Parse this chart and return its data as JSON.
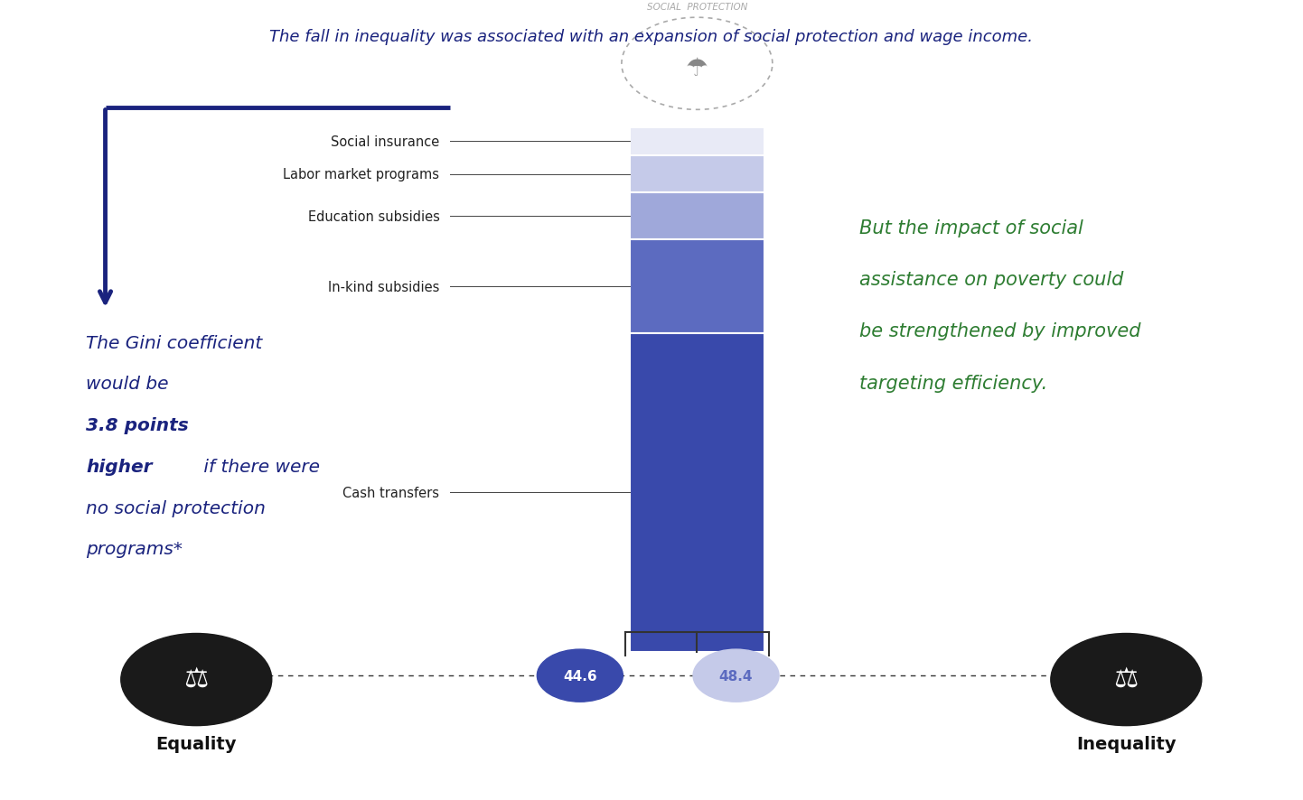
{
  "subtitle": "The fall in inequality was associated with an expansion of social protection and wage income.",
  "subtitle_color": "#1a237e",
  "gini_color": "#1a237e",
  "right_lines": [
    "But the impact of social",
    "assistance on poverty could",
    "be strengthened by improved",
    "targeting efficiency."
  ],
  "right_color": "#2e7d32",
  "categories": [
    "Social insurance",
    "Labor market programs",
    "Education subsidies",
    "In-kind subsidies",
    "Cash transfers"
  ],
  "bar_colors": [
    "#e8eaf6",
    "#c5cae9",
    "#9fa8da",
    "#5c6bc0",
    "#3949ab"
  ],
  "bar_heights": [
    0.15,
    0.2,
    0.25,
    0.5,
    1.7
  ],
  "value_44": "44.6",
  "value_48": "48.4",
  "circle_44_color": "#3949ab",
  "circle_48_color": "#c5cae9",
  "circle_48_text_color": "#5c6bc0",
  "equality_label": "Equality",
  "inequality_label": "Inequality",
  "social_protection_label": "SOCIAL  PROTECTION",
  "background_color": "#ffffff"
}
